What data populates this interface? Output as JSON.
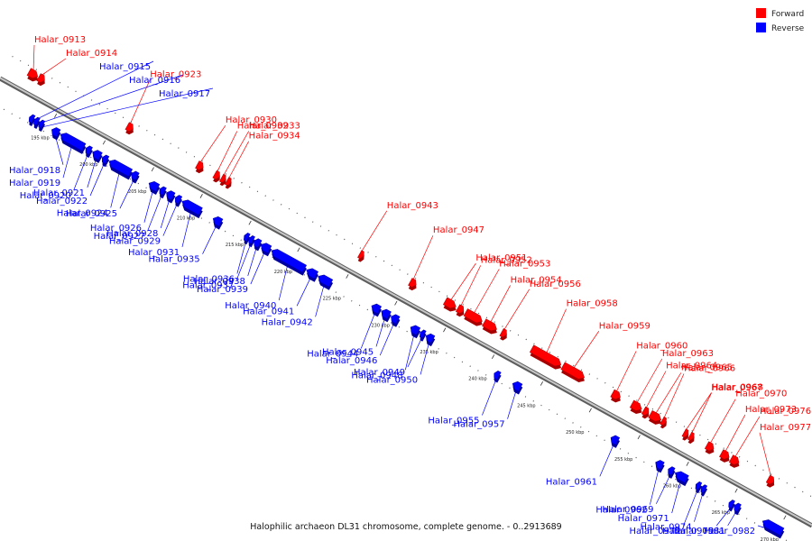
{
  "colors": {
    "forward": "#ff0000",
    "reverse": "#0000ff",
    "axis": "#8a8a8a",
    "background": "#ffffff"
  },
  "legend": [
    {
      "label": "Forward",
      "strand": "forward"
    },
    {
      "label": "Reverse",
      "strand": "reverse"
    }
  ],
  "footer": "Halophilic archaeon DL31 chromosome, complete genome. - 0..2913689",
  "ticks": [
    {
      "label": "195 kbp",
      "kbp": 195
    },
    {
      "label": "200 kbp",
      "kbp": 200
    },
    {
      "label": "205 kbp",
      "kbp": 205
    },
    {
      "label": "210 kbp",
      "kbp": 210
    },
    {
      "label": "215 kbp",
      "kbp": 215
    },
    {
      "label": "220 kbp",
      "kbp": 220
    },
    {
      "label": "225 kbp",
      "kbp": 225
    },
    {
      "label": "230 kbp",
      "kbp": 230
    },
    {
      "label": "235 kbp",
      "kbp": 235
    },
    {
      "label": "240 kbp",
      "kbp": 240
    },
    {
      "label": "245 kbp",
      "kbp": 245
    },
    {
      "label": "250 kbp",
      "kbp": 250
    },
    {
      "label": "255 kbp",
      "kbp": 255
    },
    {
      "label": "260 kbp",
      "kbp": 260
    },
    {
      "label": "265 kbp",
      "kbp": 265
    },
    {
      "label": "270 kbp",
      "kbp": 270
    }
  ],
  "genes": [
    {
      "name": "Halar_0913",
      "strand": "forward",
      "start": 191.0,
      "end": 191.9
    },
    {
      "name": "Halar_0914",
      "strand": "forward",
      "start": 192.0,
      "end": 192.6
    },
    {
      "name": "Halar_0915",
      "strand": "reverse",
      "start": 193.0,
      "end": 193.4
    },
    {
      "name": "Halar_0916",
      "strand": "reverse",
      "start": 193.5,
      "end": 193.9
    },
    {
      "name": "Halar_0917",
      "strand": "reverse",
      "start": 194.0,
      "end": 194.4
    },
    {
      "name": "Halar_0918",
      "strand": "reverse",
      "start": 195.3,
      "end": 196.0
    },
    {
      "name": "Halar_0919",
      "strand": "reverse",
      "start": 196.2,
      "end": 198.6
    },
    {
      "name": "Halar_0920",
      "strand": "reverse",
      "start": 198.8,
      "end": 199.3
    },
    {
      "name": "Halar_0921",
      "strand": "reverse",
      "start": 199.5,
      "end": 200.3
    },
    {
      "name": "Halar_0922",
      "strand": "reverse",
      "start": 200.5,
      "end": 201.0
    },
    {
      "name": "Halar_0923",
      "strand": "forward",
      "start": 201.1,
      "end": 201.7
    },
    {
      "name": "Halar_0924",
      "strand": "reverse",
      "start": 201.2,
      "end": 203.4
    },
    {
      "name": "Halar_0925",
      "strand": "reverse",
      "start": 203.5,
      "end": 204.1
    },
    {
      "name": "Halar_0926",
      "strand": "reverse",
      "start": 205.3,
      "end": 206.2
    },
    {
      "name": "Halar_0927",
      "strand": "reverse",
      "start": 206.4,
      "end": 206.9
    },
    {
      "name": "Halar_0928",
      "strand": "reverse",
      "start": 207.1,
      "end": 207.8
    },
    {
      "name": "Halar_0929",
      "strand": "reverse",
      "start": 208.0,
      "end": 208.5
    },
    {
      "name": "Halar_0930",
      "strand": "forward",
      "start": 208.3,
      "end": 208.9
    },
    {
      "name": "Halar_0931",
      "strand": "reverse",
      "start": 208.7,
      "end": 210.6
    },
    {
      "name": "Halar_0932",
      "strand": "forward",
      "start": 210.1,
      "end": 210.6
    },
    {
      "name": "Halar_0933",
      "strand": "forward",
      "start": 210.8,
      "end": 211.2
    },
    {
      "name": "Halar_0934",
      "strand": "forward",
      "start": 211.4,
      "end": 211.7
    },
    {
      "name": "Halar_0935",
      "strand": "reverse",
      "start": 211.9,
      "end": 212.7
    },
    {
      "name": "Halar_0936",
      "strand": "reverse",
      "start": 215.1,
      "end": 215.5
    },
    {
      "name": "Halar_0937",
      "strand": "reverse",
      "start": 215.6,
      "end": 216.0
    },
    {
      "name": "Halar_0938",
      "strand": "reverse",
      "start": 216.1,
      "end": 216.7
    },
    {
      "name": "Halar_0939",
      "strand": "reverse",
      "start": 216.8,
      "end": 217.7
    },
    {
      "name": "Halar_0940",
      "strand": "reverse",
      "start": 217.9,
      "end": 221.3
    },
    {
      "name": "Halar_0941",
      "strand": "reverse",
      "start": 221.5,
      "end": 222.5
    },
    {
      "name": "Halar_0942",
      "strand": "reverse",
      "start": 222.7,
      "end": 224.0
    },
    {
      "name": "Halar_0943",
      "strand": "forward",
      "start": 225.0,
      "end": 225.4
    },
    {
      "name": "Halar_0944",
      "strand": "reverse",
      "start": 228.2,
      "end": 229.0
    },
    {
      "name": "Halar_0945",
      "strand": "reverse",
      "start": 229.2,
      "end": 230.0
    },
    {
      "name": "Halar_0946",
      "strand": "reverse",
      "start": 230.2,
      "end": 230.9
    },
    {
      "name": "Halar_0947",
      "strand": "forward",
      "start": 230.2,
      "end": 230.8
    },
    {
      "name": "Halar_0948",
      "strand": "reverse",
      "start": 232.2,
      "end": 233.0
    },
    {
      "name": "Halar_0949",
      "strand": "reverse",
      "start": 233.2,
      "end": 233.6
    },
    {
      "name": "Halar_0950",
      "strand": "reverse",
      "start": 233.8,
      "end": 234.5
    },
    {
      "name": "Halar_0951",
      "strand": "forward",
      "start": 233.8,
      "end": 234.9
    },
    {
      "name": "Halar_0952",
      "strand": "forward",
      "start": 235.1,
      "end": 235.7
    },
    {
      "name": "Halar_0953",
      "strand": "forward",
      "start": 235.9,
      "end": 237.6
    },
    {
      "name": "Halar_0954",
      "strand": "forward",
      "start": 237.8,
      "end": 239.1
    },
    {
      "name": "Halar_0955",
      "strand": "reverse",
      "start": 240.8,
      "end": 241.3
    },
    {
      "name": "Halar_0956",
      "strand": "forward",
      "start": 239.6,
      "end": 240.1
    },
    {
      "name": "Halar_0957",
      "strand": "reverse",
      "start": 242.7,
      "end": 243.5
    },
    {
      "name": "Halar_0958",
      "strand": "forward",
      "start": 242.7,
      "end": 245.7
    },
    {
      "name": "Halar_0959",
      "strand": "forward",
      "start": 245.9,
      "end": 248.1
    },
    {
      "name": "Halar_0960",
      "strand": "forward",
      "start": 251.0,
      "end": 251.8
    },
    {
      "name": "Halar_0961",
      "strand": "reverse",
      "start": 252.8,
      "end": 253.5
    },
    {
      "name": "Halar_0962",
      "strand": "reverse",
      "start": 257.4,
      "end": 258.1
    },
    {
      "name": "Halar_0963",
      "strand": "forward",
      "start": 253.0,
      "end": 254.0
    },
    {
      "name": "Halar_0964",
      "strand": "forward",
      "start": 254.2,
      "end": 254.7
    },
    {
      "name": "Halar_0965",
      "strand": "forward",
      "start": 254.9,
      "end": 256.0
    },
    {
      "name": "Halar_0966",
      "strand": "forward",
      "start": 256.1,
      "end": 256.5
    },
    {
      "name": "Halar_0967",
      "strand": "forward",
      "start": 258.4,
      "end": 258.7
    },
    {
      "name": "Halar_0968",
      "strand": "forward",
      "start": 259.0,
      "end": 259.3
    },
    {
      "name": "Halar_0969",
      "strand": "reverse",
      "start": 258.7,
      "end": 259.2
    },
    {
      "name": "Halar_0970",
      "strand": "forward",
      "start": 260.7,
      "end": 261.4
    },
    {
      "name": "Halar_0971",
      "strand": "reverse",
      "start": 259.4,
      "end": 260.6
    },
    {
      "name": "Halar_0972",
      "strand": "reverse",
      "start": 261.6,
      "end": 261.9
    },
    {
      "name": "Halar_0973",
      "strand": "forward",
      "start": 262.2,
      "end": 263.0
    },
    {
      "name": "Halar_0974",
      "strand": "reverse",
      "start": 262.1,
      "end": 262.5
    },
    {
      "name": "Halar_0975",
      "strand": "reverse",
      "start": 265.0,
      "end": 265.3
    },
    {
      "name": "Halar_0976",
      "strand": "forward",
      "start": 263.2,
      "end": 264.0
    },
    {
      "name": "Halar_0977",
      "strand": "forward",
      "start": 267.0,
      "end": 267.6
    },
    {
      "name": "Halar_0981",
      "strand": "reverse",
      "start": 265.5,
      "end": 266.0
    },
    {
      "name": "Halar_0982",
      "strand": "reverse",
      "start": 268.4,
      "end": 270.4
    }
  ]
}
